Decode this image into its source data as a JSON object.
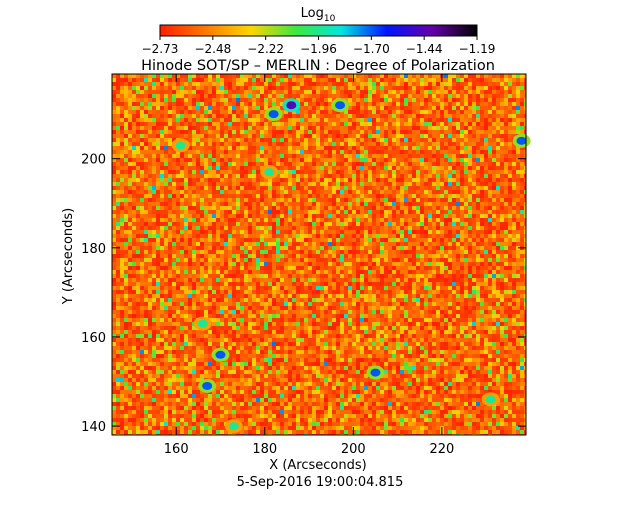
{
  "chart_data": {
    "type": "heatmap",
    "title": "Hinode SOT/SP – MERLIN : Degree of Polarization",
    "xlabel": "X (Arcseconds)",
    "ylabel": "Y (Arcseconds)",
    "timestamp": "5-Sep-2016 19:00:04.815",
    "colorbar": {
      "label": "Log",
      "label_subscript": "10",
      "ticks": [
        "−2.73",
        "−2.48",
        "−2.22",
        "−1.96",
        "−1.70",
        "−1.44",
        "−1.19"
      ],
      "range": [
        -2.73,
        -1.19
      ],
      "colormap": "rainbow (red → orange → yellow → green → cyan → blue → purple → black)",
      "colors": [
        "#ff1f00",
        "#ff7a00",
        "#ffd500",
        "#3ee83e",
        "#00e6e0",
        "#0016ff",
        "#6600aa",
        "#000000"
      ]
    },
    "xlim": [
      145.5,
      239
    ],
    "ylim": [
      138,
      219
    ],
    "xticks": [
      160,
      180,
      200,
      220
    ],
    "yticks": [
      140,
      160,
      180,
      200
    ],
    "field_description": "noisy field dominated by low values (red/orange) with scattered yellow/green patches and small blue/dark concentrations",
    "features": [
      {
        "x": 186,
        "y": 212,
        "value": -1.44
      },
      {
        "x": 182,
        "y": 210,
        "value": -1.7
      },
      {
        "x": 170,
        "y": 156,
        "value": -1.7
      },
      {
        "x": 167,
        "y": 149,
        "value": -1.7
      },
      {
        "x": 166,
        "y": 163,
        "value": -1.96
      },
      {
        "x": 205,
        "y": 152,
        "value": -1.7
      },
      {
        "x": 238,
        "y": 204,
        "value": -1.7
      },
      {
        "x": 197,
        "y": 212,
        "value": -1.7
      },
      {
        "x": 161,
        "y": 203,
        "value": -1.96
      },
      {
        "x": 181,
        "y": 197,
        "value": -1.96
      },
      {
        "x": 231,
        "y": 146,
        "value": -1.96
      },
      {
        "x": 173,
        "y": 140,
        "value": -1.96
      }
    ]
  }
}
